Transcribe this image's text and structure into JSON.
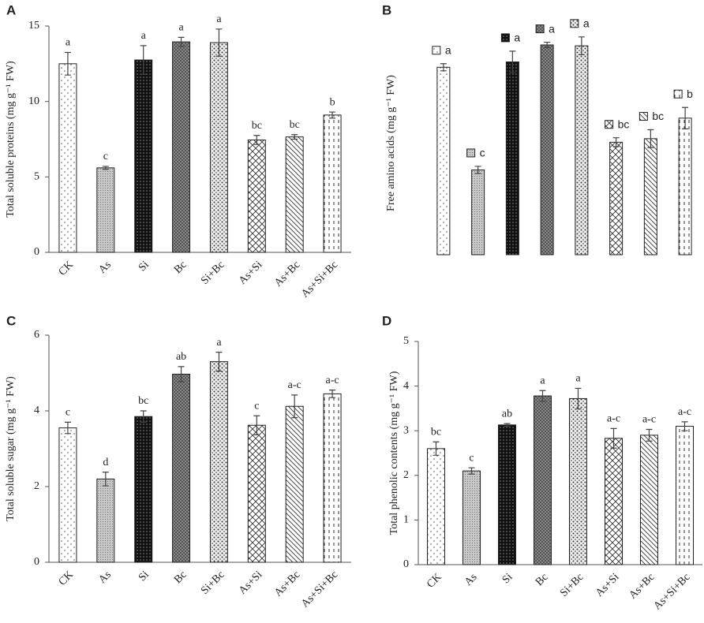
{
  "chart_data": [
    {
      "type": "bar",
      "panel": "A",
      "ylabel": "Total soluble proteins (mg g⁻¹ FW)",
      "categories": [
        "CK",
        "As",
        "Si",
        "Bc",
        "Si+Bc",
        "As+Si",
        "As+Bc",
        "As+Si+Bc"
      ],
      "values": [
        12.5,
        5.6,
        12.75,
        13.95,
        13.9,
        7.45,
        7.65,
        9.1
      ],
      "errors": [
        0.75,
        0.1,
        0.95,
        0.3,
        0.9,
        0.3,
        0.15,
        0.2
      ],
      "letters": [
        "a",
        "c",
        "a",
        "a",
        "a",
        "bc",
        "bc",
        "b"
      ],
      "ylim": [
        0,
        15
      ],
      "yticks": [
        0,
        5,
        10,
        15
      ]
    },
    {
      "type": "bar",
      "panel": "B",
      "ylabel": "Free amino acids (mg g⁻¹ FW)",
      "values": [
        210,
        95,
        216,
        235,
        234,
        126,
        130,
        153
      ],
      "errors": [
        4,
        4,
        12,
        3,
        10,
        5,
        10,
        12
      ],
      "letters": [
        "a",
        "c",
        "a",
        "a",
        "a",
        "bc",
        "bc",
        "b"
      ],
      "ylim": [
        0,
        250
      ]
    },
    {
      "type": "bar",
      "panel": "C",
      "ylabel": "Total soluble sugar (mg g⁻¹ FW)",
      "categories": [
        "CK",
        "As",
        "Si",
        "Bc",
        "Si+Bc",
        "As+Si",
        "As+Bc",
        "As+Si+Bc"
      ],
      "values": [
        3.55,
        2.2,
        3.85,
        4.97,
        5.3,
        3.62,
        4.12,
        4.45
      ],
      "errors": [
        0.15,
        0.18,
        0.15,
        0.2,
        0.25,
        0.25,
        0.3,
        0.1
      ],
      "letters": [
        "c",
        "d",
        "bc",
        "ab",
        "a",
        "c",
        "a-c",
        "a-c"
      ],
      "ylim": [
        0,
        6
      ],
      "yticks": [
        0,
        2,
        4,
        6
      ]
    },
    {
      "type": "bar",
      "panel": "D",
      "ylabel": "Total phenolic contents (mg g⁻¹ FW)",
      "categories": [
        "CK",
        "As",
        "Si",
        "Bc",
        "Si+Bc",
        "As+Si",
        "As+Bc",
        "As+Si+Bc"
      ],
      "values": [
        2.6,
        2.1,
        3.13,
        3.78,
        3.72,
        2.83,
        2.9,
        3.1
      ],
      "errors": [
        0.15,
        0.07,
        0.03,
        0.12,
        0.23,
        0.22,
        0.13,
        0.1
      ],
      "letters": [
        "bc",
        "c",
        "ab",
        "a",
        "a",
        "a-c",
        "a-c",
        "a-c"
      ],
      "ylim": [
        0,
        5
      ],
      "yticks": [
        0,
        1,
        2,
        3,
        4,
        5
      ]
    }
  ]
}
